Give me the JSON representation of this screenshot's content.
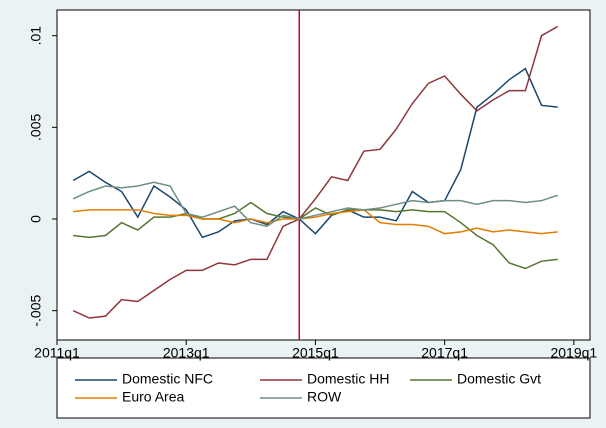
{
  "chart_data": {
    "type": "line",
    "x": [
      "2011q2",
      "2011q3",
      "2011q4",
      "2012q1",
      "2012q2",
      "2012q3",
      "2012q4",
      "2013q1",
      "2013q2",
      "2013q3",
      "2013q4",
      "2014q1",
      "2014q2",
      "2014q3",
      "2014q4",
      "2015q1",
      "2015q2",
      "2015q3",
      "2015q4",
      "2016q1",
      "2016q2",
      "2016q3",
      "2016q4",
      "2017q1",
      "2017q2",
      "2017q3",
      "2017q4",
      "2018q1",
      "2018q2",
      "2018q3",
      "2018q4"
    ],
    "series": [
      {
        "name": "Domestic NFC",
        "color": "#1a476f",
        "values": [
          0.0021,
          0.0026,
          0.002,
          0.0015,
          0.0001,
          0.0018,
          0.0012,
          0.0005,
          -0.001,
          -0.0007,
          -0.0001,
          0,
          -0.0003,
          0.0004,
          0,
          -0.0008,
          0.0002,
          0.0005,
          0.0001,
          0.0001,
          -0.0001,
          0.0015,
          0.0009,
          0.001,
          0.0027,
          0.0061,
          0.0068,
          0.0076,
          0.0082,
          0.0062,
          0.0061
        ]
      },
      {
        "name": "Domestic HH",
        "color": "#90353b",
        "values": [
          -0.005,
          -0.0054,
          -0.0053,
          -0.0044,
          -0.0045,
          -0.0039,
          -0.0033,
          -0.0028,
          -0.0028,
          -0.0024,
          -0.0025,
          -0.0022,
          -0.0022,
          -0.0004,
          0,
          0.0011,
          0.0023,
          0.0021,
          0.0037,
          0.0038,
          0.0049,
          0.0063,
          0.0074,
          0.0078,
          0.0068,
          0.0059,
          0.0065,
          0.007,
          0.007,
          0.01,
          0.0105
        ]
      },
      {
        "name": "Domestic Gvt",
        "color": "#55752f",
        "values": [
          -0.0009,
          -0.001,
          -0.0009,
          -0.0002,
          -0.0006,
          0.0001,
          0.0001,
          0.0003,
          0,
          0,
          0.0003,
          0.0009,
          0.0003,
          0.0001,
          0,
          0.0006,
          0.0002,
          0.0005,
          0.0005,
          0.0005,
          0.0004,
          0.0005,
          0.0004,
          0.0004,
          -0.0002,
          -0.0009,
          -0.0014,
          -0.0024,
          -0.0027,
          -0.0023,
          -0.0022
        ]
      },
      {
        "name": "Euro Area",
        "color": "#e37e00",
        "values": [
          0.0004,
          0.0005,
          0.0005,
          0.0005,
          0.0005,
          0.0003,
          0.0002,
          0.0002,
          0,
          0,
          -0.0002,
          0,
          -0.0002,
          0,
          0,
          0.0001,
          0.0003,
          0.0004,
          0.0005,
          -0.0002,
          -0.0003,
          -0.0003,
          -0.0004,
          -0.0008,
          -0.0007,
          -0.0005,
          -0.0007,
          -0.0006,
          -0.0007,
          -0.0008,
          -0.0007
        ]
      },
      {
        "name": "ROW",
        "color": "#6e8e84",
        "values": [
          0.0011,
          0.0015,
          0.0018,
          0.0017,
          0.0018,
          0.002,
          0.0018,
          0.0003,
          0.0001,
          0.0004,
          0.0007,
          -0.0002,
          -0.0004,
          0.0002,
          0,
          0.0002,
          0.0004,
          0.0006,
          0.0005,
          0.0006,
          0.0008,
          0.001,
          0.0009,
          0.001,
          0.001,
          0.0008,
          0.001,
          0.001,
          0.0009,
          0.001,
          0.0013
        ]
      }
    ],
    "xlim": [
      "2011q1",
      "2019q2"
    ],
    "xticks": [
      "2011q1",
      "2013q1",
      "2015q1",
      "2017q1",
      "2019q1"
    ],
    "ylim": [
      -0.0066,
      0.0114
    ],
    "yticks": [
      {
        "value": -0.005,
        "label": "-.005"
      },
      0,
      {
        "value": 0.005,
        "label": ".005"
      },
      {
        "value": 0.01,
        "label": ".01"
      }
    ],
    "vline": "2014q4",
    "vline_color": "#c10534",
    "legend": "bottom",
    "grid": false
  }
}
